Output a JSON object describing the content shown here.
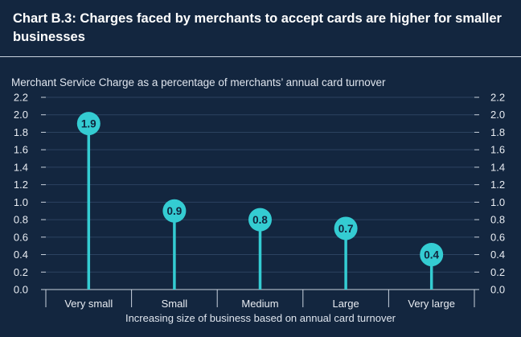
{
  "header": {
    "title": "Chart B.3: Charges faced by merchants to accept cards are higher for smaller businesses"
  },
  "chart_data": {
    "type": "bar",
    "style": "lollipop",
    "title": "Chart B.3: Charges faced by merchants to accept cards are higher for smaller businesses",
    "subtitle": "Merchant Service Charge as a percentage of merchants’ annual card turnover",
    "xlabel": "Increasing size of business based on annual card turnover",
    "ylabel": "",
    "categories": [
      "Very small",
      "Small",
      "Medium",
      "Large",
      "Very large"
    ],
    "values": [
      1.9,
      0.9,
      0.8,
      0.7,
      0.4
    ],
    "data_labels": [
      "1.9",
      "0.9",
      "0.8",
      "0.7",
      "0.4"
    ],
    "ylim": [
      0,
      2.2
    ],
    "yticks": [
      "0.0",
      "0.2",
      "0.4",
      "0.6",
      "0.8",
      "1.0",
      "1.2",
      "1.4",
      "1.6",
      "1.8",
      "2.0",
      "2.2"
    ],
    "ytick_values": [
      0,
      0.2,
      0.4,
      0.6,
      0.8,
      1.0,
      1.2,
      1.4,
      1.6,
      1.8,
      2.0,
      2.2
    ],
    "grid": true,
    "colors": {
      "background": "#13263f",
      "bar": "#34ccd2",
      "gridline": "#2c4260",
      "axis": "#c9d2de"
    }
  }
}
